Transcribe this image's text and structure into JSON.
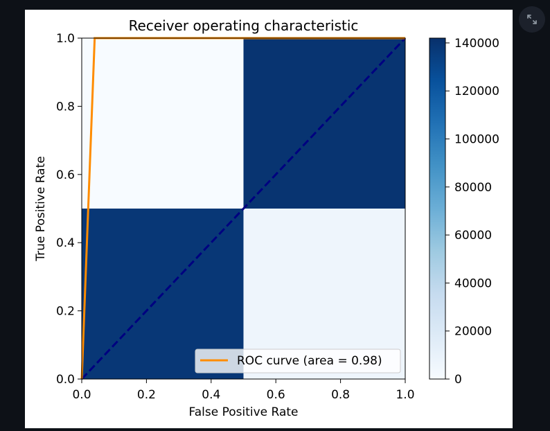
{
  "chart_data": {
    "type": "heatmap",
    "title": "Receiver operating characteristic",
    "xlabel": "False Positive Rate",
    "ylabel": "True Positive Rate",
    "xlim": [
      0.0,
      1.0
    ],
    "ylim": [
      0.0,
      1.0
    ],
    "x_ticks": [
      "0.0",
      "0.2",
      "0.4",
      "0.6",
      "0.8",
      "1.0"
    ],
    "y_ticks": [
      "0.0",
      "0.2",
      "0.4",
      "0.6",
      "0.8",
      "1.0"
    ],
    "heatmap": {
      "grid": [
        [
          0,
          140000
        ],
        [
          138000,
          6500
        ]
      ],
      "colormap": "Blues",
      "vmin": 0,
      "vmax": 142000
    },
    "colorbar": {
      "ticks": [
        0,
        20000,
        40000,
        60000,
        80000,
        100000,
        120000,
        140000
      ],
      "tick_labels": [
        "0",
        "20000",
        "40000",
        "60000",
        "80000",
        "100000",
        "120000",
        "140000"
      ]
    },
    "series": [
      {
        "name": "ROC curve (area = 0.98)",
        "color": "#ff8c00",
        "style": "solid",
        "x": [
          0.0,
          0.04,
          1.0
        ],
        "y": [
          0.0,
          1.0,
          1.0
        ]
      },
      {
        "color": "#000080",
        "style": "dashed",
        "x": [
          0.0,
          1.0
        ],
        "y": [
          0.0,
          1.0
        ]
      }
    ],
    "legend": {
      "placement": "lower-right",
      "entries": [
        "ROC curve (area = 0.98)"
      ]
    },
    "grid": false
  },
  "toolbar": {
    "expand_icon": "expand-icon"
  }
}
